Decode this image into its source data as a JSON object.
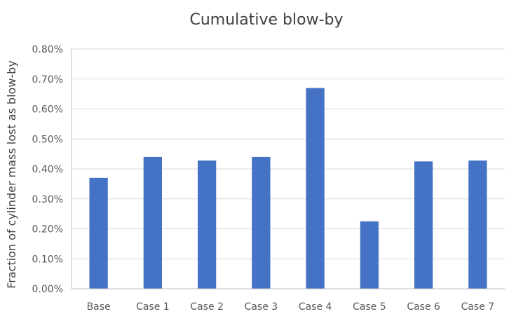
{
  "chart_data": {
    "type": "bar",
    "title": "Cumulative blow-by",
    "xlabel": "",
    "ylabel": "Fraction of cylinder mass lost as blow-by",
    "categories": [
      "Base",
      "Case 1",
      "Case 2",
      "Case 3",
      "Case 4",
      "Case 5",
      "Case 6",
      "Case 7"
    ],
    "values": [
      0.0037,
      0.0044,
      0.00428,
      0.0044,
      0.0067,
      0.00225,
      0.00425,
      0.00428
    ],
    "ylim": [
      0,
      0.008
    ],
    "yticks": [
      0,
      0.001,
      0.002,
      0.003,
      0.004,
      0.005,
      0.006,
      0.007,
      0.008
    ],
    "ytick_labels": [
      "0.00%",
      "0.10%",
      "0.20%",
      "0.30%",
      "0.40%",
      "0.50%",
      "0.60%",
      "0.70%",
      "0.80%"
    ],
    "grid": true,
    "legend": "none",
    "colors": {
      "bar": "#4472C4",
      "grid": "#d9d9d9",
      "axis": "#bfbfbf"
    }
  }
}
